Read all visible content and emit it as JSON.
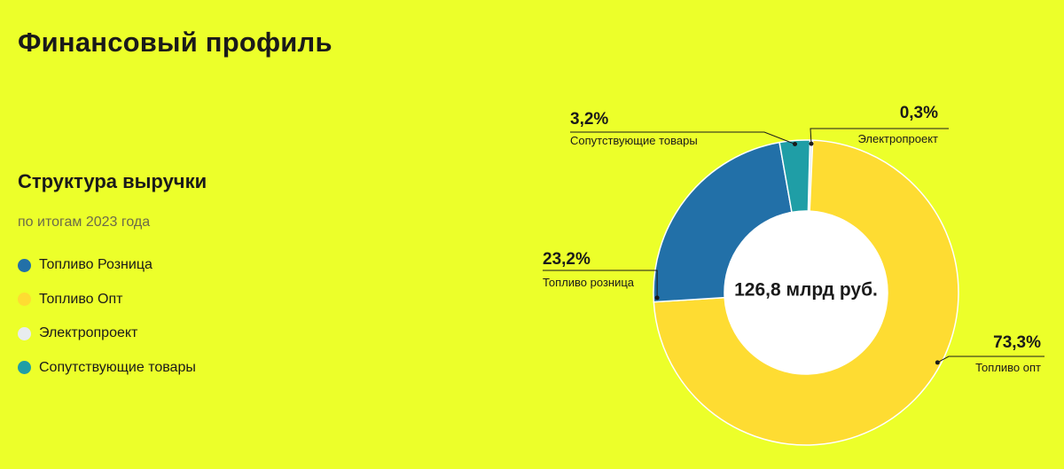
{
  "page": {
    "title": "Финансовый профиль"
  },
  "section": {
    "title": "Структура выручки",
    "subtitle": "по итогам 2023 года"
  },
  "legend": [
    {
      "label": "Топливо Розница",
      "color": "#2270a8"
    },
    {
      "label": "Топливо Опт",
      "color": "#fedc32"
    },
    {
      "label": "Электропроект",
      "color": "#e8ecef"
    },
    {
      "label": "Сопутствующие товары",
      "color": "#1f9ea6"
    }
  ],
  "chart_data": {
    "type": "pie",
    "variant": "donut",
    "center_label": "126,8 млрд руб.",
    "slices": [
      {
        "name": "Электропроект",
        "value": 0.3,
        "value_label": "0,3%",
        "callout_label": "Электропроект",
        "color": "#e8ecef"
      },
      {
        "name": "Топливо Опт",
        "value": 73.3,
        "value_label": "73,3%",
        "callout_label": "Топливо опт",
        "color": "#fedc32"
      },
      {
        "name": "Топливо Розница",
        "value": 23.2,
        "value_label": "23,2%",
        "callout_label": "Топливо розница",
        "color": "#2270a8"
      },
      {
        "name": "Сопутствующие товары",
        "value": 3.2,
        "value_label": "3,2%",
        "callout_label": "Сопутствующие товары",
        "color": "#1f9ea6"
      }
    ]
  }
}
